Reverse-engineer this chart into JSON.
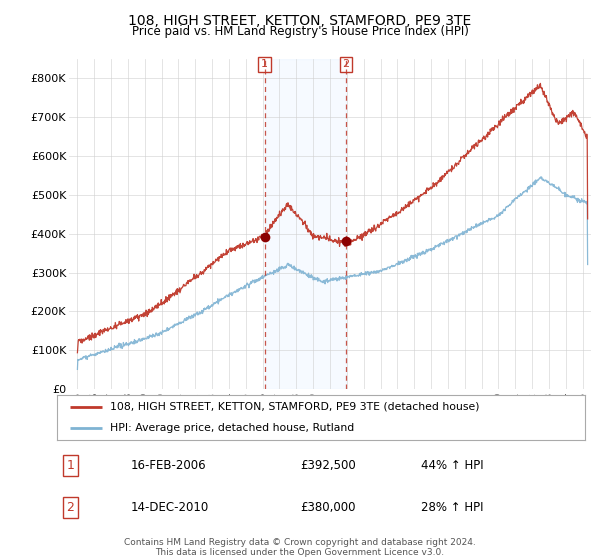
{
  "title": "108, HIGH STREET, KETTON, STAMFORD, PE9 3TE",
  "subtitle": "Price paid vs. HM Land Registry's House Price Index (HPI)",
  "footer": "Contains HM Land Registry data © Crown copyright and database right 2024.\nThis data is licensed under the Open Government Licence v3.0.",
  "legend_line1": "108, HIGH STREET, KETTON, STAMFORD, PE9 3TE (detached house)",
  "legend_line2": "HPI: Average price, detached house, Rutland",
  "sale1_date": "16-FEB-2006",
  "sale1_price": "£392,500",
  "sale1_hpi": "44% ↑ HPI",
  "sale1_year": 2006.12,
  "sale1_value": 392500,
  "sale2_date": "14-DEC-2010",
  "sale2_price": "£380,000",
  "sale2_hpi": "28% ↑ HPI",
  "sale2_year": 2010.95,
  "sale2_value": 380000,
  "hpi_color": "#7fb3d3",
  "price_color": "#c0392b",
  "marker_color": "#8b0000",
  "vline_color": "#c0392b",
  "shade_color": "#ddeeff",
  "ylim": [
    0,
    850000
  ],
  "yticks": [
    0,
    100000,
    200000,
    300000,
    400000,
    500000,
    600000,
    700000,
    800000
  ],
  "ytick_labels": [
    "£0",
    "£100K",
    "£200K",
    "£300K",
    "£400K",
    "£500K",
    "£600K",
    "£700K",
    "£800K"
  ],
  "xstart": 1994.5,
  "xend": 2025.5,
  "bg_color": "#ffffff",
  "grid_color": "#d0d0d0"
}
